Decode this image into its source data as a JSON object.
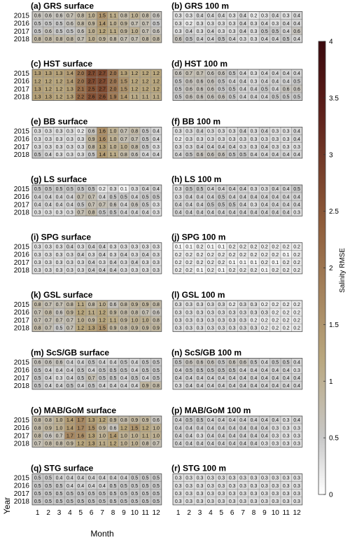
{
  "chart_data": {
    "type": "heatmap",
    "row_label": "Year",
    "column_label": "Month",
    "rows": [
      "2015",
      "2016",
      "2017",
      "2018"
    ],
    "columns": [
      "1",
      "2",
      "3",
      "4",
      "5",
      "6",
      "7",
      "8",
      "9",
      "10",
      "11",
      "12"
    ],
    "colorbar": {
      "label": "Salinity RMSE",
      "range": [
        0,
        4
      ],
      "ticks": [
        "0",
        "0.5",
        "1",
        "1.5",
        "2",
        "2.5",
        "3",
        "3.5",
        "4"
      ],
      "colors": [
        "#ffffff",
        "#c8c8c8",
        "#b9a77e",
        "#8e5c3a",
        "#5c1f1a",
        "#3b0a0e"
      ]
    },
    "panels": [
      {
        "title": "(a) GRS surface",
        "values": [
          [
            0.6,
            0.6,
            0.6,
            0.7,
            0.8,
            1.0,
            1.5,
            1.1,
            0.8,
            1.0,
            0.8,
            0.6
          ],
          [
            0.5,
            0.5,
            0.5,
            0.6,
            0.8,
            0.9,
            1.4,
            1.0,
            0.9,
            0.7,
            0.7,
            0.5
          ],
          [
            0.5,
            0.6,
            0.5,
            0.5,
            0.6,
            1.0,
            1.2,
            1.1,
            0.9,
            1.0,
            0.7,
            0.6
          ],
          [
            0.8,
            0.8,
            0.8,
            0.8,
            0.7,
            1.0,
            0.9,
            0.8,
            0.7,
            0.7,
            0.8,
            0.8
          ]
        ]
      },
      {
        "title": "(b) GRS 100 m",
        "values": [
          [
            0.3,
            0.3,
            0.4,
            0.4,
            0.4,
            0.3,
            0.4,
            0.2,
            0.3,
            0.4,
            0.3,
            0.4
          ],
          [
            0.3,
            0.2,
            0.3,
            0.3,
            0.3,
            0.3,
            0.4,
            0.3,
            0.4,
            0.3,
            0.4,
            0.4
          ],
          [
            0.3,
            0.4,
            0.3,
            0.4,
            0.3,
            0.3,
            0.4,
            0.3,
            0.5,
            0.5,
            0.4,
            0.6
          ],
          [
            0.6,
            0.5,
            0.4,
            0.4,
            0.5,
            0.4,
            0.3,
            0.3,
            0.4,
            0.4,
            0.5,
            0.4
          ]
        ]
      },
      {
        "title": "(c) HST surface",
        "values": [
          [
            1.3,
            1.3,
            1.3,
            1.4,
            2.0,
            2.7,
            2.7,
            2.0,
            1.3,
            1.2,
            1.2,
            1.2
          ],
          [
            1.2,
            1.2,
            1.2,
            1.4,
            2.0,
            2.7,
            2.7,
            2.0,
            1.5,
            1.2,
            1.2,
            1.2
          ],
          [
            1.3,
            1.2,
            1.2,
            1.3,
            2.1,
            2.5,
            2.7,
            2.0,
            1.5,
            1.2,
            1.2,
            1.2
          ],
          [
            1.3,
            1.3,
            1.2,
            1.3,
            2.2,
            2.6,
            2.6,
            1.9,
            1.4,
            1.1,
            1.1,
            1.1
          ]
        ]
      },
      {
        "title": "(d) HST 100 m",
        "values": [
          [
            0.6,
            0.7,
            0.7,
            0.6,
            0.6,
            0.5,
            0.4,
            0.3,
            0.4,
            0.4,
            0.4,
            0.4
          ],
          [
            0.5,
            0.6,
            0.6,
            0.6,
            0.5,
            0.4,
            0.4,
            0.3,
            0.4,
            0.4,
            0.4,
            0.5
          ],
          [
            0.5,
            0.6,
            0.6,
            0.6,
            0.5,
            0.5,
            0.4,
            0.4,
            0.5,
            0.4,
            0.6,
            0.6
          ],
          [
            0.5,
            0.6,
            0.6,
            0.6,
            0.6,
            0.5,
            0.4,
            0.4,
            0.4,
            0.5,
            0.5,
            0.5
          ]
        ]
      },
      {
        "title": "(e) BB surface",
        "values": [
          [
            0.3,
            0.3,
            0.3,
            0.3,
            0.2,
            0.6,
            1.6,
            1.0,
            0.7,
            0.8,
            0.5,
            0.4
          ],
          [
            0.3,
            0.3,
            0.3,
            0.3,
            0.3,
            0.9,
            1.6,
            1.0,
            0.7,
            0.7,
            0.5,
            0.4
          ],
          [
            0.3,
            0.3,
            0.3,
            0.3,
            0.3,
            0.8,
            1.3,
            1.0,
            1.0,
            0.8,
            0.5,
            0.3
          ],
          [
            0.5,
            0.4,
            0.3,
            0.3,
            0.3,
            0.5,
            1.4,
            1.1,
            0.8,
            0.6,
            0.4,
            0.4
          ]
        ]
      },
      {
        "title": "(f) BB 100 m",
        "values": [
          [
            0.3,
            0.3,
            0.4,
            0.3,
            0.3,
            0.3,
            0.4,
            0.3,
            0.4,
            0.3,
            0.3,
            0.4
          ],
          [
            0.2,
            0.3,
            0.3,
            0.3,
            0.3,
            0.3,
            0.3,
            0.3,
            0.3,
            0.3,
            0.3,
            0.4
          ],
          [
            0.3,
            0.3,
            0.4,
            0.4,
            0.4,
            0.4,
            0.3,
            0.3,
            0.4,
            0.3,
            0.3,
            0.3
          ],
          [
            0.4,
            0.5,
            0.6,
            0.6,
            0.6,
            0.5,
            0.5,
            0.4,
            0.4,
            0.4,
            0.4,
            0.4
          ]
        ]
      },
      {
        "title": "(g) LS surface",
        "values": [
          [
            0.5,
            0.5,
            0.5,
            0.5,
            0.5,
            0.5,
            0.2,
            0.3,
            0.1,
            0.3,
            0.4,
            0.4
          ],
          [
            0.4,
            0.4,
            0.4,
            0.4,
            0.7,
            0.7,
            0.4,
            0.5,
            0.5,
            0.4,
            0.5,
            0.5
          ],
          [
            0.4,
            0.4,
            0.4,
            0.4,
            0.5,
            0.7,
            0.7,
            0.6,
            0.4,
            0.6,
            0.5,
            0.3
          ],
          [
            0.3,
            0.3,
            0.3,
            0.3,
            0.7,
            0.8,
            0.5,
            0.5,
            0.4,
            0.4,
            0.4,
            0.3
          ]
        ]
      },
      {
        "title": "(h) LS 100 m",
        "values": [
          [
            0.3,
            0.5,
            0.5,
            0.4,
            0.4,
            0.4,
            0.4,
            0.3,
            0.3,
            0.4,
            0.4,
            0.5
          ],
          [
            0.3,
            0.4,
            0.4,
            0.4,
            0.5,
            0.4,
            0.4,
            0.4,
            0.4,
            0.4,
            0.4,
            0.4
          ],
          [
            0.4,
            0.4,
            0.4,
            0.5,
            0.5,
            0.5,
            0.4,
            0.3,
            0.4,
            0.4,
            0.4,
            0.4
          ],
          [
            0.4,
            0.4,
            0.4,
            0.4,
            0.4,
            0.4,
            0.4,
            0.4,
            0.4,
            0.4,
            0.4,
            0.3
          ]
        ]
      },
      {
        "title": "(i) SPG surface",
        "values": [
          [
            0.3,
            0.3,
            0.3,
            0.4,
            0.3,
            0.4,
            0.4,
            0.3,
            0.3,
            0.3,
            0.3,
            0.3
          ],
          [
            0.3,
            0.3,
            0.3,
            0.3,
            0.4,
            0.3,
            0.4,
            0.3,
            0.4,
            0.3,
            0.4,
            0.3
          ],
          [
            0.3,
            0.3,
            0.3,
            0.3,
            0.3,
            0.4,
            0.3,
            0.4,
            0.3,
            0.4,
            0.3,
            0.3
          ],
          [
            0.3,
            0.3,
            0.3,
            0.3,
            0.3,
            0.4,
            0.4,
            0.4,
            0.3,
            0.3,
            0.3,
            0.3
          ]
        ]
      },
      {
        "title": "(j) SPG 100 m",
        "values": [
          [
            0.1,
            0.1,
            0.2,
            0.1,
            0.1,
            0.2,
            0.2,
            0.2,
            0.2,
            0.2,
            0.2,
            0.2
          ],
          [
            0.2,
            0.2,
            0.2,
            0.2,
            0.2,
            0.2,
            0.2,
            0.2,
            0.2,
            0.2,
            0.1,
            0.2
          ],
          [
            0.2,
            0.2,
            0.2,
            0.2,
            0.2,
            0.1,
            0.1,
            0.1,
            0.2,
            0.1,
            0.2,
            0.2
          ],
          [
            0.2,
            0.2,
            0.1,
            0.2,
            0.1,
            0.2,
            0.2,
            0.2,
            0.1,
            0.2,
            0.2,
            0.2
          ]
        ]
      },
      {
        "title": "(k) GSL surface",
        "values": [
          [
            0.8,
            0.7,
            0.7,
            0.8,
            1.1,
            0.8,
            1.0,
            0.6,
            0.8,
            0.9,
            0.9,
            0.8
          ],
          [
            0.7,
            0.8,
            0.6,
            0.9,
            1.2,
            1.1,
            1.2,
            0.9,
            0.8,
            0.8,
            0.7,
            0.6
          ],
          [
            0.7,
            0.7,
            0.7,
            0.7,
            1.0,
            0.9,
            1.2,
            1.1,
            0.9,
            1.0,
            1.0,
            0.8
          ],
          [
            0.8,
            0.7,
            0.5,
            0.7,
            1.2,
            1.3,
            1.5,
            0.9,
            0.8,
            0.9,
            0.9,
            0.9
          ]
        ]
      },
      {
        "title": "(l) GSL 100 m",
        "values": [
          [
            0.3,
            0.3,
            0.3,
            0.3,
            0.3,
            0.2,
            0.3,
            0.3,
            0.2,
            0.2,
            0.2,
            0.2
          ],
          [
            0.3,
            0.3,
            0.3,
            0.3,
            0.3,
            0.3,
            0.3,
            0.3,
            0.3,
            0.2,
            0.2,
            0.2
          ],
          [
            0.3,
            0.3,
            0.3,
            0.3,
            0.3,
            0.3,
            0.3,
            0.2,
            0.2,
            0.2,
            0.2,
            0.2
          ],
          [
            0.3,
            0.3,
            0.3,
            0.3,
            0.3,
            0.3,
            0.3,
            0.3,
            0.2,
            0.2,
            0.2,
            0.2
          ]
        ]
      },
      {
        "title": "(m) ScS/GB surface",
        "values": [
          [
            0.6,
            0.6,
            0.6,
            0.4,
            0.4,
            0.5,
            0.4,
            0.4,
            0.5,
            0.4,
            0.5,
            0.5
          ],
          [
            0.5,
            0.4,
            0.4,
            0.4,
            0.5,
            0.4,
            0.5,
            0.5,
            0.5,
            0.4,
            0.5,
            0.5
          ],
          [
            0.5,
            0.4,
            0.3,
            0.4,
            0.5,
            0.7,
            0.5,
            0.5,
            0.4,
            0.5,
            0.4,
            0.5
          ],
          [
            0.5,
            0.4,
            0.4,
            0.5,
            0.4,
            0.5,
            0.4,
            0.4,
            0.4,
            0.4,
            0.9,
            0.8
          ]
        ]
      },
      {
        "title": "(n) ScS/GB 100 m",
        "values": [
          [
            0.5,
            0.6,
            0.6,
            0.6,
            0.5,
            0.6,
            0.6,
            0.5,
            0.4,
            0.5,
            0.5,
            0.4
          ],
          [
            0.4,
            0.5,
            0.5,
            0.5,
            0.5,
            0.5,
            0.4,
            0.4,
            0.4,
            0.4,
            0.4,
            0.3
          ],
          [
            0.4,
            0.4,
            0.4,
            0.4,
            0.4,
            0.4,
            0.4,
            0.4,
            0.4,
            0.4,
            0.4,
            0.4
          ],
          [
            0.3,
            0.4,
            0.4,
            0.4,
            0.4,
            0.4,
            0.4,
            0.4,
            0.4,
            0.4,
            0.4,
            0.4
          ]
        ]
      },
      {
        "title": "(o) MAB/GoM surface",
        "values": [
          [
            0.8,
            0.8,
            1.0,
            1.4,
            1.7,
            1.3,
            1.2,
            0.9,
            0.8,
            0.9,
            0.9,
            0.6
          ],
          [
            0.8,
            0.9,
            1.0,
            1.4,
            1.7,
            1.5,
            0.9,
            0.6,
            1.2,
            1.5,
            1.2,
            1.0
          ],
          [
            0.8,
            0.6,
            0.7,
            1.7,
            1.6,
            1.3,
            1.0,
            1.4,
            1.0,
            1.0,
            1.1,
            1.0
          ],
          [
            0.7,
            0.8,
            0.8,
            0.9,
            1.2,
            1.3,
            1.1,
            1.2,
            1.0,
            1.0,
            0.8,
            0.7
          ]
        ]
      },
      {
        "title": "(p) MAB/GoM 100 m",
        "values": [
          [
            0.4,
            0.5,
            0.5,
            0.4,
            0.4,
            0.4,
            0.4,
            0.4,
            0.4,
            0.4,
            0.3,
            0.4
          ],
          [
            0.4,
            0.4,
            0.4,
            0.4,
            0.4,
            0.4,
            0.4,
            0.4,
            0.4,
            0.3,
            0.3,
            0.3
          ],
          [
            0.4,
            0.4,
            0.3,
            0.4,
            0.4,
            0.4,
            0.4,
            0.4,
            0.4,
            0.3,
            0.3,
            0.3
          ],
          [
            0.4,
            0.4,
            0.4,
            0.4,
            0.4,
            0.4,
            0.4,
            0.4,
            0.3,
            0.3,
            0.3,
            0.3
          ]
        ]
      },
      {
        "title": "(q) STG surface",
        "values": [
          [
            0.5,
            0.5,
            0.4,
            0.4,
            0.4,
            0.4,
            0.4,
            0.4,
            0.4,
            0.5,
            0.5,
            0.5
          ],
          [
            0.5,
            0.5,
            0.5,
            0.4,
            0.4,
            0.4,
            0.4,
            0.5,
            0.5,
            0.5,
            0.5,
            0.5
          ],
          [
            0.5,
            0.5,
            0.5,
            0.5,
            0.5,
            0.5,
            0.5,
            0.5,
            0.5,
            0.5,
            0.5,
            0.5
          ],
          [
            0.5,
            0.5,
            0.5,
            0.5,
            0.5,
            0.5,
            0.5,
            0.5,
            0.5,
            0.5,
            0.5,
            0.5
          ]
        ]
      },
      {
        "title": "(r) STG 100 m",
        "values": [
          [
            0.3,
            0.3,
            0.3,
            0.3,
            0.3,
            0.3,
            0.3,
            0.3,
            0.3,
            0.3,
            0.3,
            0.3
          ],
          [
            0.3,
            0.3,
            0.3,
            0.3,
            0.3,
            0.3,
            0.3,
            0.3,
            0.3,
            0.3,
            0.3,
            0.3
          ],
          [
            0.3,
            0.3,
            0.3,
            0.3,
            0.3,
            0.3,
            0.3,
            0.3,
            0.3,
            0.3,
            0.3,
            0.3
          ],
          [
            0.3,
            0.3,
            0.3,
            0.3,
            0.3,
            0.3,
            0.3,
            0.3,
            0.3,
            0.3,
            0.3,
            0.3
          ]
        ]
      }
    ]
  }
}
